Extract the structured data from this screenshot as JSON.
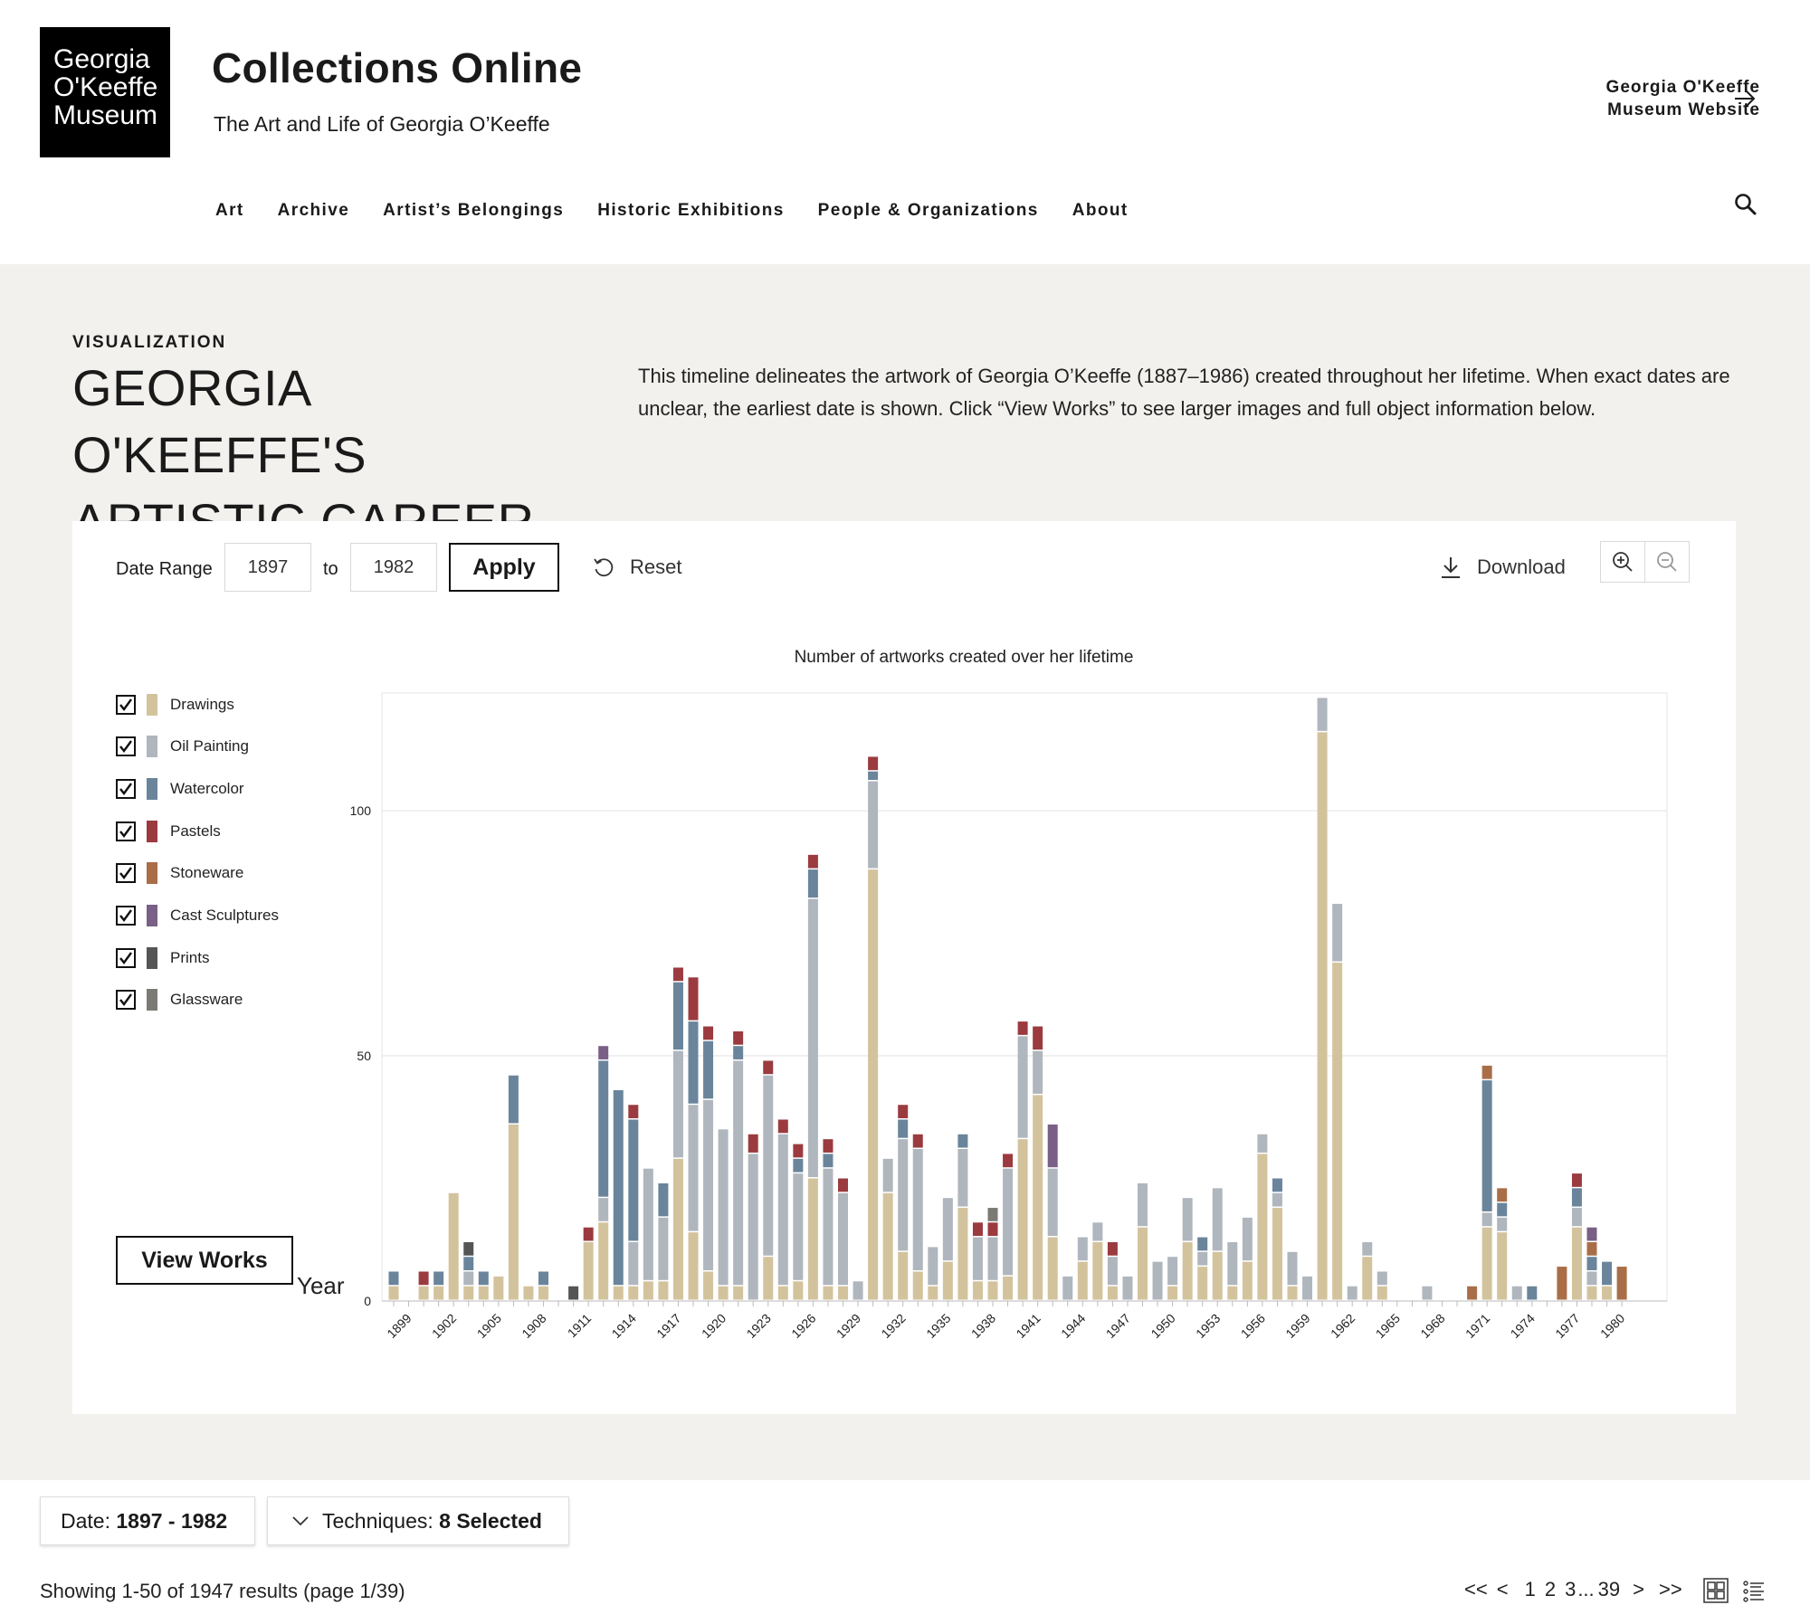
{
  "header": {
    "logo_lines": [
      "Georgia",
      "O'Keeffe",
      "Museum"
    ],
    "site_title": "Collections Online",
    "site_subtitle": "The Art and Life of Georgia O’Keeffe",
    "museum_link_lines": [
      "Georgia O'Keeffe",
      "Museum Website"
    ],
    "nav": [
      "Art",
      "Archive",
      "Artist’s Belongings",
      "Historic Exhibitions",
      "People & Organizations",
      "About"
    ]
  },
  "visualization": {
    "eyebrow": "VISUALIZATION",
    "title_lines": [
      "GEORGIA O'KEEFFE'S",
      "ARTISTIC CAREER"
    ],
    "description": "This timeline delineates the artwork of Georgia O’Keeffe (1887–1986) created throughout her lifetime. When exact dates are unclear, the earliest date is shown. Click “View Works” to see larger images and full object information below."
  },
  "controls": {
    "date_range_label": "Date Range",
    "date_from": "1897",
    "to_label": "to",
    "date_to": "1982",
    "apply_label": "Apply",
    "reset_label": "Reset",
    "download_label": "Download",
    "view_works_label": "View Works"
  },
  "chart_data": {
    "type": "bar",
    "stacked": true,
    "title": "Number of artworks created over her lifetime",
    "xlabel": "Year",
    "ylabel": "",
    "ylim": [
      0,
      124
    ],
    "yticks": [
      0,
      50,
      100
    ],
    "grid": true,
    "legend_position": "left",
    "x_tick_labels": [
      "1899",
      "1902",
      "1905",
      "1908",
      "1911",
      "1914",
      "1917",
      "1920",
      "1923",
      "1926",
      "1929",
      "1932",
      "1935",
      "1938",
      "1941",
      "1944",
      "1947",
      "1950",
      "1953",
      "1956",
      "1959",
      "1962",
      "1965",
      "1968",
      "1971",
      "1974",
      "1977",
      "1980"
    ],
    "categories": [
      "1898",
      "1899",
      "1900",
      "1901",
      "1902",
      "1903",
      "1904",
      "1905",
      "1906",
      "1907",
      "1908",
      "1909",
      "1910",
      "1911",
      "1912",
      "1913",
      "1914",
      "1915",
      "1916",
      "1917",
      "1918",
      "1919",
      "1920",
      "1921",
      "1922",
      "1923",
      "1924",
      "1925",
      "1926",
      "1927",
      "1928",
      "1929",
      "1930",
      "1931",
      "1932",
      "1933",
      "1934",
      "1935",
      "1936",
      "1937",
      "1938",
      "1939",
      "1940",
      "1941",
      "1942",
      "1943",
      "1944",
      "1945",
      "1946",
      "1947",
      "1948",
      "1949",
      "1950",
      "1951",
      "1952",
      "1953",
      "1954",
      "1955",
      "1956",
      "1957",
      "1958",
      "1959",
      "1960",
      "1961",
      "1962",
      "1963",
      "1964",
      "1965",
      "1966",
      "1967",
      "1968",
      "1969",
      "1970",
      "1971",
      "1972",
      "1973",
      "1974",
      "1975",
      "1976",
      "1977",
      "1978",
      "1979",
      "1980"
    ],
    "series": [
      {
        "name": "Drawings",
        "color": "#d3c39d",
        "values": [
          3,
          0,
          3,
          3,
          22,
          3,
          3,
          5,
          36,
          3,
          3,
          0,
          0,
          12,
          16,
          3,
          3,
          4,
          4,
          29,
          14,
          6,
          3,
          3,
          0,
          9,
          3,
          4,
          25,
          3,
          3,
          0,
          88,
          22,
          10,
          6,
          3,
          8,
          19,
          4,
          4,
          5,
          33,
          42,
          13,
          0,
          8,
          12,
          3,
          0,
          15,
          0,
          3,
          12,
          7,
          10,
          3,
          8,
          30,
          19,
          3,
          0,
          116,
          69,
          0,
          9,
          3,
          0,
          0,
          0,
          0,
          0,
          0,
          15,
          14,
          0,
          0,
          0,
          0,
          15,
          3,
          3,
          0
        ]
      },
      {
        "name": "Oil Painting",
        "color": "#b0b6bd",
        "values": [
          0,
          0,
          0,
          0,
          0,
          3,
          0,
          0,
          0,
          0,
          0,
          0,
          0,
          0,
          5,
          0,
          9,
          23,
          13,
          22,
          26,
          35,
          32,
          46,
          30,
          37,
          31,
          22,
          57,
          24,
          19,
          4,
          18,
          7,
          23,
          25,
          8,
          13,
          12,
          9,
          9,
          22,
          21,
          9,
          14,
          5,
          5,
          4,
          6,
          5,
          9,
          8,
          6,
          9,
          3,
          13,
          9,
          9,
          4,
          3,
          7,
          5,
          7,
          12,
          3,
          3,
          3,
          0,
          0,
          3,
          0,
          0,
          0,
          3,
          3,
          3,
          0,
          0,
          0,
          4,
          3,
          0,
          0
        ]
      },
      {
        "name": "Watercolor",
        "color": "#6a859b",
        "values": [
          3,
          0,
          0,
          3,
          0,
          3,
          3,
          0,
          10,
          0,
          3,
          0,
          0,
          0,
          28,
          40,
          25,
          0,
          7,
          14,
          17,
          12,
          0,
          3,
          0,
          0,
          0,
          3,
          6,
          3,
          0,
          0,
          2,
          0,
          4,
          0,
          0,
          0,
          3,
          0,
          0,
          0,
          0,
          0,
          0,
          0,
          0,
          0,
          0,
          0,
          0,
          0,
          0,
          0,
          3,
          0,
          0,
          0,
          0,
          3,
          0,
          0,
          0,
          0,
          0,
          0,
          0,
          0,
          0,
          0,
          0,
          0,
          0,
          27,
          3,
          0,
          3,
          0,
          0,
          4,
          3,
          5,
          0
        ]
      },
      {
        "name": "Pastels",
        "color": "#9b3b3f",
        "values": [
          0,
          0,
          3,
          0,
          0,
          0,
          0,
          0,
          0,
          0,
          0,
          0,
          0,
          3,
          0,
          0,
          3,
          0,
          0,
          3,
          9,
          3,
          0,
          3,
          4,
          3,
          3,
          3,
          3,
          3,
          3,
          0,
          3,
          0,
          3,
          3,
          0,
          0,
          0,
          3,
          3,
          3,
          3,
          5,
          0,
          0,
          0,
          0,
          3,
          0,
          0,
          0,
          0,
          0,
          0,
          0,
          0,
          0,
          0,
          0,
          0,
          0,
          0,
          0,
          0,
          0,
          0,
          0,
          0,
          0,
          0,
          0,
          0,
          0,
          0,
          0,
          0,
          0,
          0,
          3,
          0,
          0,
          0
        ]
      },
      {
        "name": "Stoneware",
        "color": "#a96e47",
        "values": [
          0,
          0,
          0,
          0,
          0,
          0,
          0,
          0,
          0,
          0,
          0,
          0,
          0,
          0,
          0,
          0,
          0,
          0,
          0,
          0,
          0,
          0,
          0,
          0,
          0,
          0,
          0,
          0,
          0,
          0,
          0,
          0,
          0,
          0,
          0,
          0,
          0,
          0,
          0,
          0,
          0,
          0,
          0,
          0,
          0,
          0,
          0,
          0,
          0,
          0,
          0,
          0,
          0,
          0,
          0,
          0,
          0,
          0,
          0,
          0,
          0,
          0,
          0,
          0,
          0,
          0,
          0,
          0,
          0,
          0,
          0,
          0,
          3,
          3,
          3,
          0,
          0,
          0,
          7,
          0,
          3,
          0,
          7
        ]
      },
      {
        "name": "Cast Sculptures",
        "color": "#7a5f86",
        "values": [
          0,
          0,
          0,
          0,
          0,
          0,
          0,
          0,
          0,
          0,
          0,
          0,
          0,
          0,
          3,
          0,
          0,
          0,
          0,
          0,
          0,
          0,
          0,
          0,
          0,
          0,
          0,
          0,
          0,
          0,
          0,
          0,
          0,
          0,
          0,
          0,
          0,
          0,
          0,
          0,
          0,
          0,
          0,
          0,
          9,
          0,
          0,
          0,
          0,
          0,
          0,
          0,
          0,
          0,
          0,
          0,
          0,
          0,
          0,
          0,
          0,
          0,
          0,
          0,
          0,
          0,
          0,
          0,
          0,
          0,
          0,
          0,
          0,
          0,
          0,
          0,
          0,
          0,
          0,
          0,
          3,
          0,
          0
        ]
      },
      {
        "name": "Prints",
        "color": "#555555",
        "values": [
          0,
          0,
          0,
          0,
          0,
          3,
          0,
          0,
          0,
          0,
          0,
          0,
          3,
          0,
          0,
          0,
          0,
          0,
          0,
          0,
          0,
          0,
          0,
          0,
          0,
          0,
          0,
          0,
          0,
          0,
          0,
          0,
          0,
          0,
          0,
          0,
          0,
          0,
          0,
          0,
          0,
          0,
          0,
          0,
          0,
          0,
          0,
          0,
          0,
          0,
          0,
          0,
          0,
          0,
          0,
          0,
          0,
          0,
          0,
          0,
          0,
          0,
          0,
          0,
          0,
          0,
          0,
          0,
          0,
          0,
          0,
          0,
          0,
          0,
          0,
          0,
          0,
          0,
          0,
          0,
          0,
          0,
          0
        ]
      },
      {
        "name": "Glassware",
        "color": "#7b7a74",
        "values": [
          0,
          0,
          0,
          0,
          0,
          0,
          0,
          0,
          0,
          0,
          0,
          0,
          0,
          0,
          0,
          0,
          0,
          0,
          0,
          0,
          0,
          0,
          0,
          0,
          0,
          0,
          0,
          0,
          0,
          0,
          0,
          0,
          0,
          0,
          0,
          0,
          0,
          0,
          0,
          0,
          3,
          0,
          0,
          0,
          0,
          0,
          0,
          0,
          0,
          0,
          0,
          0,
          0,
          0,
          0,
          0,
          0,
          0,
          0,
          0,
          0,
          0,
          0,
          0,
          0,
          0,
          0,
          0,
          0,
          0,
          0,
          0,
          0,
          0,
          0,
          0,
          0,
          0,
          0,
          0,
          0,
          0,
          0
        ]
      }
    ]
  },
  "results": {
    "date_chip_label": "Date:",
    "date_chip_value": "1897 - 1982",
    "techniques_chip_label": "Techniques:",
    "techniques_chip_value": "8 Selected",
    "showing_text": "Showing 1-50 of 1947 results (page 1/39)",
    "pagination": [
      "<<",
      "<",
      "1",
      "2",
      "3",
      "...",
      "39",
      ">",
      ">>"
    ]
  }
}
